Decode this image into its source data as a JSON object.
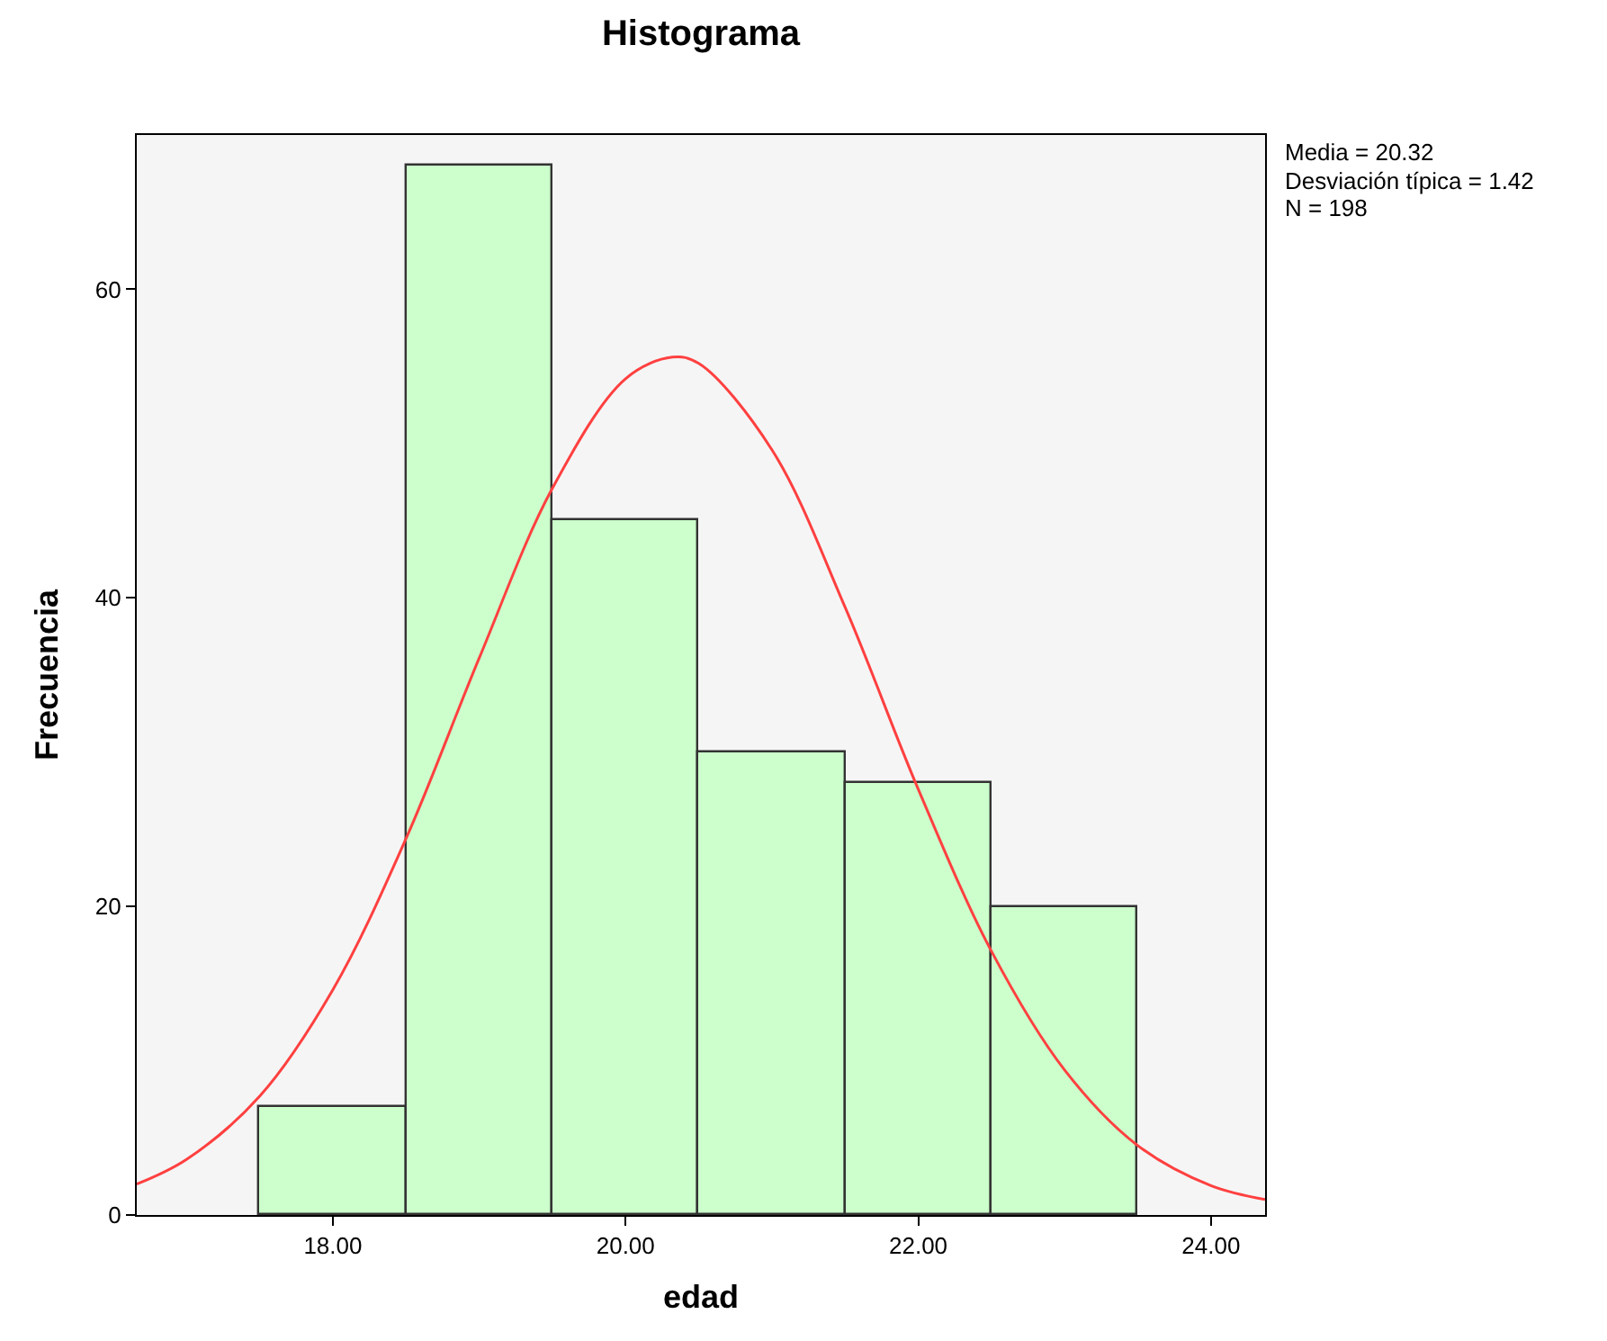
{
  "chart_data": {
    "type": "histogram",
    "title": "Histograma",
    "xlabel": "edad",
    "ylabel": "Frecuencia",
    "series": [
      {
        "type": "histogram",
        "bins": [
          17.5,
          18.5,
          19.5,
          20.5,
          21.5,
          22.5,
          23.5
        ],
        "values": [
          7,
          68,
          45,
          30,
          28,
          20
        ],
        "color": "#ccffcc"
      },
      {
        "type": "line",
        "color": "#ff4040",
        "x": [
          16.66,
          17.0,
          17.5,
          18.0,
          18.5,
          19.0,
          19.5,
          20.0,
          20.32,
          20.5,
          21.0,
          21.5,
          22.0,
          22.5,
          23.0,
          23.5,
          24.0,
          24.37
        ],
        "values": [
          2.0,
          3.6,
          7.7,
          14.6,
          24.4,
          36.1,
          47.1,
          54.2,
          55.6,
          55.2,
          49.6,
          39.4,
          27.6,
          17.1,
          9.4,
          4.5,
          1.9,
          1.0
        ]
      }
    ],
    "xlim": [
      16.66,
      24.37
    ],
    "xticks": [
      {
        "value": 18,
        "label": "18.00"
      },
      {
        "value": 20,
        "label": "20.00"
      },
      {
        "value": 22,
        "label": "22.00"
      },
      {
        "value": 24,
        "label": "24.00"
      }
    ],
    "ylim": [
      0,
      70
    ],
    "yticks": [
      0,
      20,
      40,
      60
    ],
    "annotations": [
      "Media = 20.32",
      "Desviación típica = 1.42",
      "N = 198"
    ],
    "grid": false
  }
}
